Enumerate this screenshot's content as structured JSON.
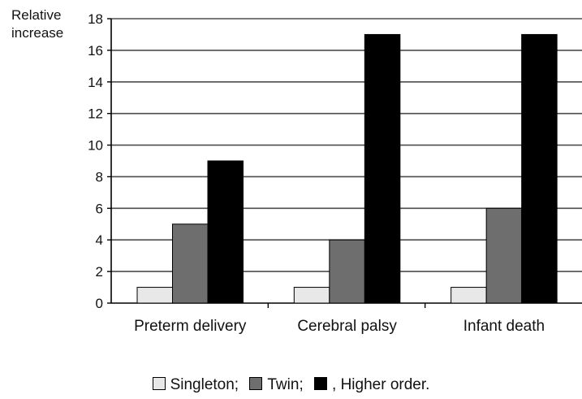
{
  "chart_data": {
    "type": "bar",
    "ylabel_lines": [
      "Relative",
      "increase"
    ],
    "categories": [
      "Preterm delivery",
      "Cerebral palsy",
      "Infant death"
    ],
    "series": [
      {
        "name": "Singleton",
        "color": "#e8e8e8",
        "values": [
          1,
          1,
          1
        ]
      },
      {
        "name": "Twin",
        "color": "#6e6e6e",
        "values": [
          5,
          4,
          6
        ]
      },
      {
        "name": "Higher order",
        "color": "#000000",
        "values": [
          9,
          17,
          17
        ]
      }
    ],
    "ylim": [
      0,
      18
    ],
    "yticks": [
      0,
      2,
      4,
      6,
      8,
      10,
      12,
      14,
      16,
      18
    ],
    "grid": true
  },
  "legend": {
    "items": [
      {
        "label": "Singleton;",
        "color": "#e8e8e8"
      },
      {
        "label": "Twin;",
        "color": "#6e6e6e"
      },
      {
        "label": ", Higher order.",
        "color": "#000000"
      }
    ]
  }
}
